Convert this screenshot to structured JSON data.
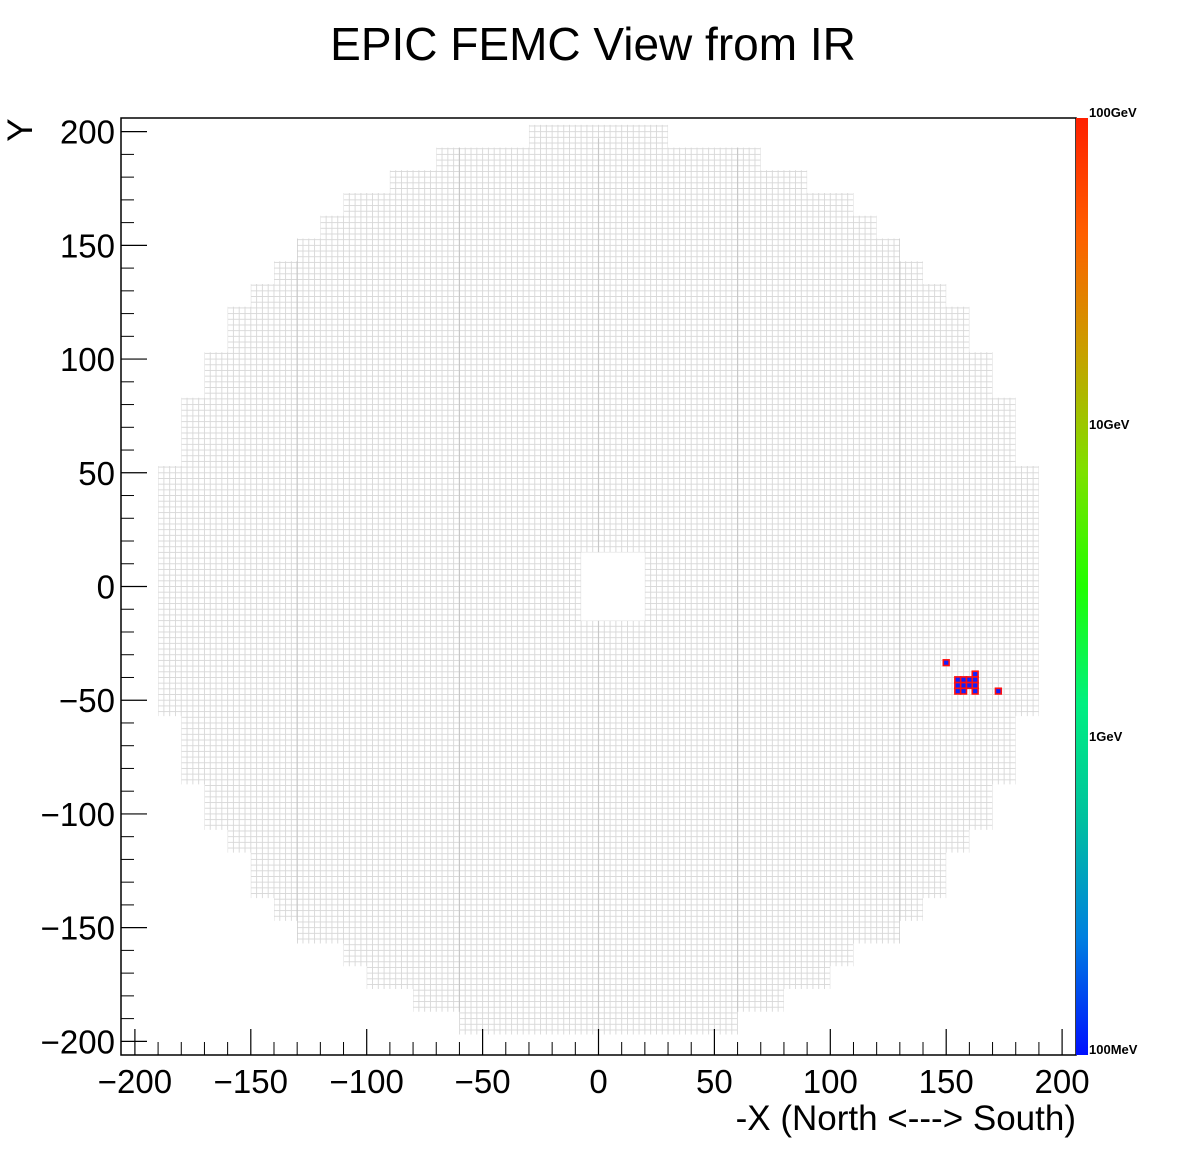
{
  "chart_data": {
    "type": "heatmap",
    "title": "EPIC FEMC View from IR",
    "xlabel": "-X (North <---> South)",
    "ylabel": "Y",
    "xlim": [
      -206,
      206
    ],
    "ylim": [
      -206,
      206
    ],
    "x_ticks": [
      -200,
      -150,
      -100,
      -50,
      0,
      50,
      100,
      150,
      200
    ],
    "x_tick_labels": [
      "−200",
      "−150",
      "−100",
      "−50",
      "0",
      "50",
      "100",
      "150",
      "200"
    ],
    "y_ticks": [
      200,
      150,
      100,
      50,
      0,
      -50,
      -100,
      -150,
      -200
    ],
    "y_tick_labels": [
      "200",
      "150",
      "100",
      "50",
      "0",
      "−50",
      "−100",
      "−150",
      "−200"
    ],
    "detector": {
      "cell_size": 2.5,
      "outer_radius": 197,
      "beam_hole_x": [
        -7.5,
        20
      ],
      "beam_hole_y": [
        -15,
        15
      ],
      "cell_color": "#d8d8d8"
    },
    "colorbar": {
      "scale": "log",
      "labels": [
        "100GeV",
        "10GeV",
        "1GeV",
        "100MeV"
      ],
      "colors": [
        "#ff2000",
        "#ff6000",
        "#c8a000",
        "#80e000",
        "#20ff00",
        "#00f080",
        "#00c0a0",
        "#0080e0",
        "#0010ff"
      ]
    },
    "hits": [
      {
        "x": 150,
        "y": -33.5
      },
      {
        "x": 155,
        "y": -41
      },
      {
        "x": 157.5,
        "y": -41
      },
      {
        "x": 160,
        "y": -41
      },
      {
        "x": 162.5,
        "y": -38.5
      },
      {
        "x": 162.5,
        "y": -41
      },
      {
        "x": 155,
        "y": -43.5
      },
      {
        "x": 157.5,
        "y": -43.5
      },
      {
        "x": 160,
        "y": -43.5
      },
      {
        "x": 162.5,
        "y": -43.5
      },
      {
        "x": 155,
        "y": -46
      },
      {
        "x": 157.5,
        "y": -46
      },
      {
        "x": 162.5,
        "y": -46
      },
      {
        "x": 172.5,
        "y": -46
      }
    ]
  }
}
